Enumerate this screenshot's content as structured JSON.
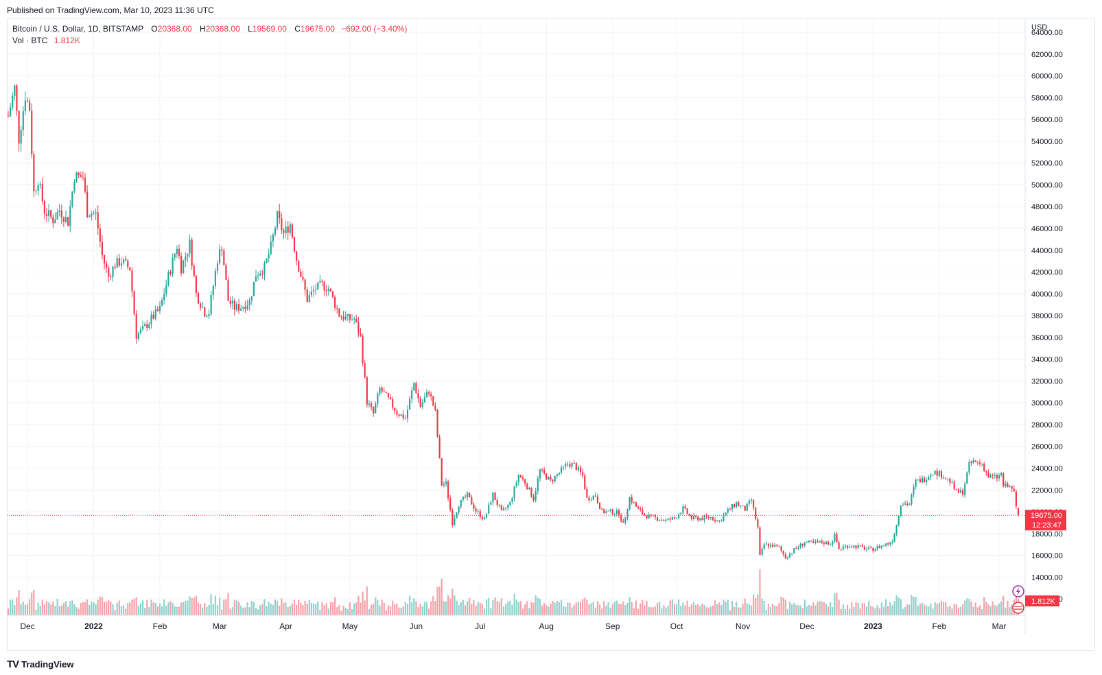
{
  "published": "Published on TradingView.com, Mar 10, 2023 11:36 UTC",
  "footer": {
    "logo_glyph": "TV",
    "brand": "TradingView"
  },
  "legend": {
    "symbol": "Bitcoin / U.S. Dollar, 1D, BITSTAMP",
    "o_key": "O",
    "o_val": "20368.00",
    "h_key": "H",
    "h_val": "20368.00",
    "l_key": "L",
    "l_val": "19569.00",
    "c_key": "C",
    "c_val": "19675.00",
    "change": "−692.00 (−3.40%)",
    "vol_label": "Vol · BTC",
    "vol_val": "1.812K"
  },
  "colors": {
    "up": "#26a69a",
    "down": "#f23645",
    "grid": "#f0f3fa",
    "vol_up": "#8fd1cb",
    "vol_down": "#f7a1a8"
  },
  "chart_data": {
    "type": "candlestick",
    "currency": "USD",
    "ylim": [
      10500,
      64000
    ],
    "y_ticks": [
      12000,
      14000,
      16000,
      18000,
      20000,
      22000,
      24000,
      26000,
      28000,
      30000,
      32000,
      34000,
      36000,
      38000,
      40000,
      42000,
      44000,
      46000,
      48000,
      50000,
      52000,
      54000,
      56000,
      58000,
      60000,
      62000,
      64000
    ],
    "x_labels": [
      {
        "date": "2021-12-01",
        "label": "Dec"
      },
      {
        "date": "2022-01-01",
        "label": "2022"
      },
      {
        "date": "2022-02-01",
        "label": "Feb"
      },
      {
        "date": "2022-03-01",
        "label": "Mar"
      },
      {
        "date": "2022-04-01",
        "label": "Apr"
      },
      {
        "date": "2022-05-01",
        "label": "May"
      },
      {
        "date": "2022-06-01",
        "label": "Jun"
      },
      {
        "date": "2022-07-01",
        "label": "Jul"
      },
      {
        "date": "2022-08-01",
        "label": "Aug"
      },
      {
        "date": "2022-09-01",
        "label": "Sep"
      },
      {
        "date": "2022-10-01",
        "label": "Oct"
      },
      {
        "date": "2022-11-01",
        "label": "Nov"
      },
      {
        "date": "2022-12-01",
        "label": "Dec"
      },
      {
        "date": "2023-01-01",
        "label": "2023"
      },
      {
        "date": "2023-02-01",
        "label": "Feb"
      },
      {
        "date": "2023-03-01",
        "label": "Mar"
      }
    ],
    "close_series": [
      {
        "date": "2021-11-22",
        "close": 56300
      },
      {
        "date": "2021-11-25",
        "close": 58900
      },
      {
        "date": "2021-11-27",
        "close": 54200
      },
      {
        "date": "2021-11-30",
        "close": 58200
      },
      {
        "date": "2021-12-02",
        "close": 57000
      },
      {
        "date": "2021-12-04",
        "close": 49300
      },
      {
        "date": "2021-12-06",
        "close": 50500
      },
      {
        "date": "2021-12-09",
        "close": 47600
      },
      {
        "date": "2021-12-13",
        "close": 46800
      },
      {
        "date": "2021-12-16",
        "close": 47700
      },
      {
        "date": "2021-12-20",
        "close": 46600
      },
      {
        "date": "2021-12-23",
        "close": 50800
      },
      {
        "date": "2021-12-27",
        "close": 50700
      },
      {
        "date": "2021-12-29",
        "close": 47500
      },
      {
        "date": "2022-01-02",
        "close": 47300
      },
      {
        "date": "2022-01-05",
        "close": 43500
      },
      {
        "date": "2022-01-08",
        "close": 41600
      },
      {
        "date": "2022-01-11",
        "close": 42700
      },
      {
        "date": "2022-01-14",
        "close": 43000
      },
      {
        "date": "2022-01-18",
        "close": 42300
      },
      {
        "date": "2022-01-21",
        "close": 36200
      },
      {
        "date": "2022-01-24",
        "close": 36700
      },
      {
        "date": "2022-01-28",
        "close": 37700
      },
      {
        "date": "2022-02-01",
        "close": 38600
      },
      {
        "date": "2022-02-05",
        "close": 41600
      },
      {
        "date": "2022-02-09",
        "close": 44400
      },
      {
        "date": "2022-02-11",
        "close": 42400
      },
      {
        "date": "2022-02-15",
        "close": 44600
      },
      {
        "date": "2022-02-18",
        "close": 40000
      },
      {
        "date": "2022-02-22",
        "close": 38300
      },
      {
        "date": "2022-02-24",
        "close": 38300
      },
      {
        "date": "2022-02-28",
        "close": 43200
      },
      {
        "date": "2022-03-02",
        "close": 44400
      },
      {
        "date": "2022-03-05",
        "close": 39400
      },
      {
        "date": "2022-03-08",
        "close": 38700
      },
      {
        "date": "2022-03-11",
        "close": 38800
      },
      {
        "date": "2022-03-15",
        "close": 39300
      },
      {
        "date": "2022-03-18",
        "close": 41800
      },
      {
        "date": "2022-03-22",
        "close": 42400
      },
      {
        "date": "2022-03-25",
        "close": 44300
      },
      {
        "date": "2022-03-28",
        "close": 47100
      },
      {
        "date": "2022-03-31",
        "close": 45500
      },
      {
        "date": "2022-04-03",
        "close": 46400
      },
      {
        "date": "2022-04-06",
        "close": 43200
      },
      {
        "date": "2022-04-11",
        "close": 39500
      },
      {
        "date": "2022-04-15",
        "close": 40500
      },
      {
        "date": "2022-04-18",
        "close": 40800
      },
      {
        "date": "2022-04-21",
        "close": 40500
      },
      {
        "date": "2022-04-26",
        "close": 38100
      },
      {
        "date": "2022-04-30",
        "close": 37700
      },
      {
        "date": "2022-05-03",
        "close": 37700
      },
      {
        "date": "2022-05-06",
        "close": 36000
      },
      {
        "date": "2022-05-09",
        "close": 30100
      },
      {
        "date": "2022-05-12",
        "close": 29000
      },
      {
        "date": "2022-05-15",
        "close": 31300
      },
      {
        "date": "2022-05-19",
        "close": 30300
      },
      {
        "date": "2022-05-23",
        "close": 29100
      },
      {
        "date": "2022-05-27",
        "close": 28600
      },
      {
        "date": "2022-05-31",
        "close": 31800
      },
      {
        "date": "2022-06-03",
        "close": 29700
      },
      {
        "date": "2022-06-07",
        "close": 31100
      },
      {
        "date": "2022-06-10",
        "close": 29100
      },
      {
        "date": "2022-06-13",
        "close": 22500
      },
      {
        "date": "2022-06-15",
        "close": 22600
      },
      {
        "date": "2022-06-18",
        "close": 19000
      },
      {
        "date": "2022-06-21",
        "close": 20700
      },
      {
        "date": "2022-06-25",
        "close": 21500
      },
      {
        "date": "2022-06-29",
        "close": 20100
      },
      {
        "date": "2022-07-03",
        "close": 19300
      },
      {
        "date": "2022-07-07",
        "close": 21600
      },
      {
        "date": "2022-07-11",
        "close": 19900
      },
      {
        "date": "2022-07-15",
        "close": 20800
      },
      {
        "date": "2022-07-19",
        "close": 23400
      },
      {
        "date": "2022-07-22",
        "close": 22700
      },
      {
        "date": "2022-07-26",
        "close": 21200
      },
      {
        "date": "2022-07-29",
        "close": 23800
      },
      {
        "date": "2022-08-03",
        "close": 22800
      },
      {
        "date": "2022-08-08",
        "close": 23800
      },
      {
        "date": "2022-08-11",
        "close": 24400
      },
      {
        "date": "2022-08-14",
        "close": 24300
      },
      {
        "date": "2022-08-18",
        "close": 23300
      },
      {
        "date": "2022-08-20",
        "close": 21200
      },
      {
        "date": "2022-08-24",
        "close": 21500
      },
      {
        "date": "2022-08-27",
        "close": 20000
      },
      {
        "date": "2022-08-31",
        "close": 20000
      },
      {
        "date": "2022-09-04",
        "close": 19900
      },
      {
        "date": "2022-09-06",
        "close": 18800
      },
      {
        "date": "2022-09-09",
        "close": 21300
      },
      {
        "date": "2022-09-13",
        "close": 20200
      },
      {
        "date": "2022-09-16",
        "close": 19700
      },
      {
        "date": "2022-09-19",
        "close": 19500
      },
      {
        "date": "2022-09-22",
        "close": 19400
      },
      {
        "date": "2022-09-26",
        "close": 19200
      },
      {
        "date": "2022-09-30",
        "close": 19400
      },
      {
        "date": "2022-10-04",
        "close": 20300
      },
      {
        "date": "2022-10-08",
        "close": 19400
      },
      {
        "date": "2022-10-13",
        "close": 19400
      },
      {
        "date": "2022-10-17",
        "close": 19500
      },
      {
        "date": "2022-10-21",
        "close": 19100
      },
      {
        "date": "2022-10-25",
        "close": 20100
      },
      {
        "date": "2022-10-29",
        "close": 20800
      },
      {
        "date": "2022-11-02",
        "close": 20200
      },
      {
        "date": "2022-11-05",
        "close": 21100
      },
      {
        "date": "2022-11-08",
        "close": 18500
      },
      {
        "date": "2022-11-09",
        "close": 15900
      },
      {
        "date": "2022-11-11",
        "close": 17000
      },
      {
        "date": "2022-11-15",
        "close": 16900
      },
      {
        "date": "2022-11-18",
        "close": 16700
      },
      {
        "date": "2022-11-21",
        "close": 15800
      },
      {
        "date": "2022-11-25",
        "close": 16500
      },
      {
        "date": "2022-11-30",
        "close": 17200
      },
      {
        "date": "2022-12-04",
        "close": 17100
      },
      {
        "date": "2022-12-08",
        "close": 17200
      },
      {
        "date": "2022-12-12",
        "close": 17100
      },
      {
        "date": "2022-12-14",
        "close": 17800
      },
      {
        "date": "2022-12-16",
        "close": 16600
      },
      {
        "date": "2022-12-20",
        "close": 16900
      },
      {
        "date": "2022-12-25",
        "close": 16800
      },
      {
        "date": "2022-12-31",
        "close": 16500
      },
      {
        "date": "2023-01-04",
        "close": 16800
      },
      {
        "date": "2023-01-08",
        "close": 17100
      },
      {
        "date": "2023-01-10",
        "close": 17400
      },
      {
        "date": "2023-01-12",
        "close": 18800
      },
      {
        "date": "2023-01-14",
        "close": 20800
      },
      {
        "date": "2023-01-18",
        "close": 20700
      },
      {
        "date": "2023-01-21",
        "close": 22800
      },
      {
        "date": "2023-01-25",
        "close": 23000
      },
      {
        "date": "2023-01-29",
        "close": 23700
      },
      {
        "date": "2023-02-02",
        "close": 23400
      },
      {
        "date": "2023-02-06",
        "close": 22800
      },
      {
        "date": "2023-02-09",
        "close": 21800
      },
      {
        "date": "2023-02-12",
        "close": 21800
      },
      {
        "date": "2023-02-15",
        "close": 24300
      },
      {
        "date": "2023-02-17",
        "close": 24600
      },
      {
        "date": "2023-02-21",
        "close": 24400
      },
      {
        "date": "2023-02-24",
        "close": 23200
      },
      {
        "date": "2023-02-28",
        "close": 23150
      },
      {
        "date": "2023-03-02",
        "close": 23450
      },
      {
        "date": "2023-03-03",
        "close": 22400
      },
      {
        "date": "2023-03-07",
        "close": 22200
      },
      {
        "date": "2023-03-08",
        "close": 21700
      },
      {
        "date": "2023-03-09",
        "close": 20368
      },
      {
        "date": "2023-03-10",
        "close": 19675
      }
    ],
    "last": {
      "open": 20368.0,
      "high": 20368.0,
      "low": 19569.0,
      "close": 19675.0,
      "change": -692.0,
      "change_pct": -3.4
    },
    "volume_note": "volume bars along bottom, last 1.812K",
    "price_label": "19675.00",
    "countdown_label": "12:23:47",
    "volume_label": "1.812K",
    "grid": true
  }
}
